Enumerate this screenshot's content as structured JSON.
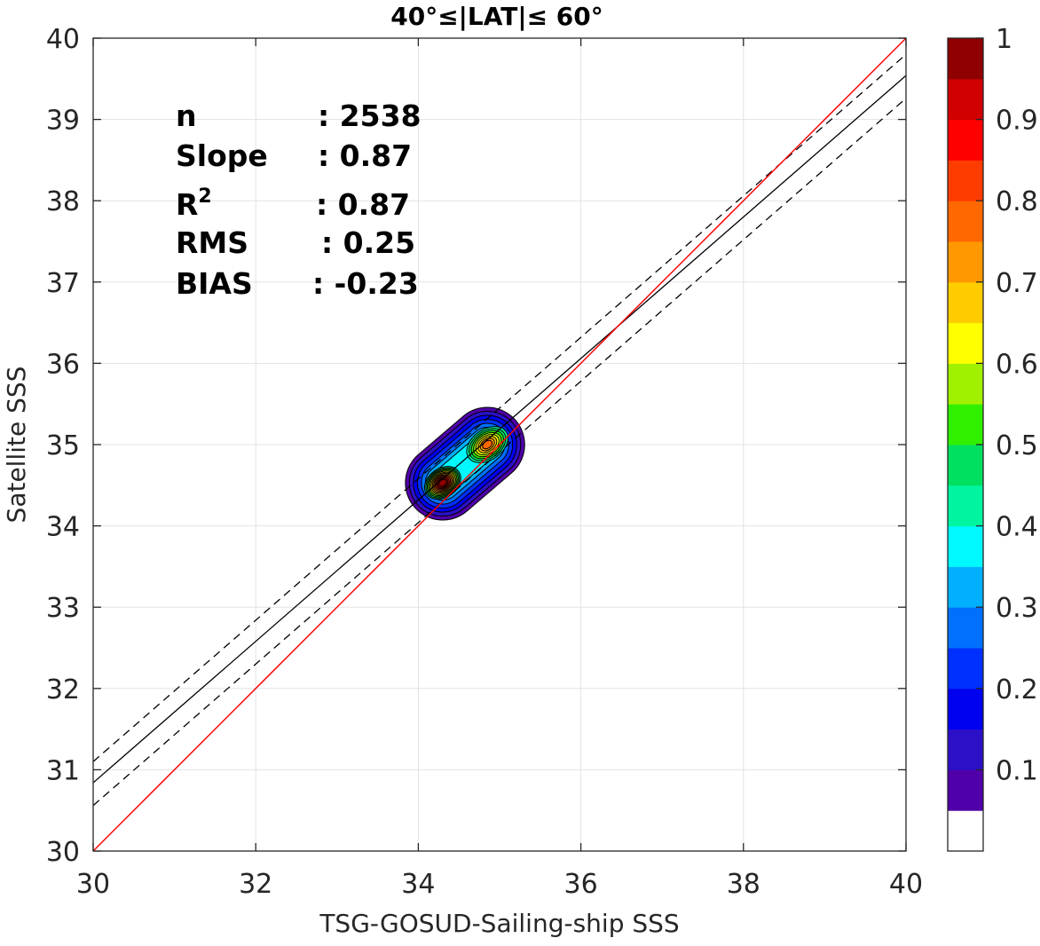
{
  "chart_data": {
    "type": "contour",
    "title": "40°≤|LAT|≤ 60°",
    "xlabel": "TSG-GOSUD-Sailing-ship SSS",
    "ylabel": "Satellite SSS",
    "xlim": [
      30,
      40
    ],
    "ylim": [
      30,
      40
    ],
    "xticks": [
      "30",
      "32",
      "34",
      "36",
      "38",
      "40"
    ],
    "yticks": [
      "30",
      "31",
      "32",
      "33",
      "34",
      "35",
      "36",
      "37",
      "38",
      "39",
      "40"
    ],
    "grid": true,
    "stats": {
      "rows": [
        {
          "label": "n",
          "value": ": 2538"
        },
        {
          "label": "Slope",
          "value": ": 0.87"
        },
        {
          "label": "R",
          "sup": "2",
          "value": ": 0.87"
        },
        {
          "label": "RMS",
          "value": ": 0.25"
        },
        {
          "label": "BIAS",
          "value": ": -0.23"
        }
      ]
    },
    "lines": {
      "one_to_one": {
        "points": [
          [
            30,
            30
          ],
          [
            40,
            40
          ]
        ],
        "color": "#ff0000"
      },
      "regression": {
        "slope": 0.87,
        "intercept": 4.74,
        "color": "#000000"
      },
      "upper_bound": {
        "slope": 0.87,
        "intercept": 5.0,
        "style": "dashed"
      },
      "lower_bound": {
        "slope": 0.87,
        "intercept": 4.46,
        "style": "dashed"
      }
    },
    "density_peaks": [
      {
        "x": 34.3,
        "y": 34.53,
        "value": 1.0
      },
      {
        "x": 34.85,
        "y": 35.0,
        "value": 0.8
      }
    ],
    "colorbar": {
      "ticks": [
        "0.1",
        "0.2",
        "0.3",
        "0.4",
        "0.5",
        "0.6",
        "0.7",
        "0.8",
        "0.9",
        "1"
      ],
      "colors": [
        "#ffffff",
        "#5000a8",
        "#2c10c8",
        "#0000f0",
        "#0030ff",
        "#0070ff",
        "#00b0ff",
        "#00f8ff",
        "#00f5a0",
        "#00e060",
        "#30f000",
        "#a0f000",
        "#ffff00",
        "#ffcc00",
        "#ff9800",
        "#ff6800",
        "#ff3c00",
        "#ff0000",
        "#d00000",
        "#900000"
      ]
    }
  }
}
